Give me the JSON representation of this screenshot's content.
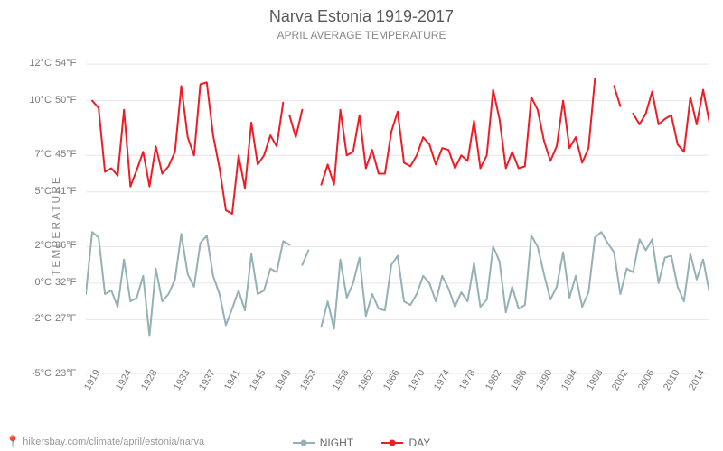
{
  "title": "Narva Estonia 1919-2017",
  "subtitle": "APRIL AVERAGE TEMPERATURE",
  "ylabel": "TEMPERATURE",
  "attribution": "hikersbay.com/climate/april/estonia/narva",
  "chart": {
    "type": "line",
    "background_color": "#ffffff",
    "grid_color": "#e6e6e6",
    "line_width": 2,
    "title_fontsize": 18,
    "subtitle_fontsize": 12,
    "label_fontsize": 12,
    "tick_fontsize": 11,
    "text_color": "#595959",
    "muted_text_color": "#888888",
    "xlim": [
      1919,
      2017
    ],
    "ylim": [
      -5,
      12.8
    ],
    "yticks_c": [
      -5,
      -2,
      0,
      2,
      5,
      7,
      10,
      12
    ],
    "yticks_c_labels": [
      "-5°C",
      "-2°C",
      "0°C",
      "2°C",
      "5°C",
      "7°C",
      "10°C",
      "12°C"
    ],
    "yticks_f_labels": [
      "23°F",
      "27°F",
      "32°F",
      "36°F",
      "41°F",
      "45°F",
      "50°F",
      "54°F"
    ],
    "xticks": [
      1919,
      1924,
      1928,
      1933,
      1937,
      1941,
      1945,
      1949,
      1953,
      1958,
      1962,
      1966,
      1970,
      1974,
      1978,
      1982,
      1986,
      1990,
      1994,
      1998,
      2002,
      2006,
      2010,
      2014
    ],
    "xtick_rotation": -60,
    "legend": {
      "night": "NIGHT",
      "day": "DAY"
    },
    "series": {
      "day": {
        "color": "#ee1c25",
        "marker": "circle",
        "segments": [
          {
            "years": [
              1920,
              1921,
              1922,
              1923,
              1924,
              1925,
              1926,
              1927,
              1928,
              1929,
              1930,
              1931,
              1932,
              1933,
              1934,
              1935,
              1936,
              1937,
              1938,
              1939,
              1940,
              1941,
              1942,
              1943,
              1944,
              1945,
              1946,
              1947,
              1948,
              1949,
              1950
            ],
            "values": [
              10.0,
              9.6,
              6.1,
              6.3,
              5.9,
              9.5,
              5.3,
              6.2,
              7.2,
              5.3,
              7.5,
              6.0,
              6.4,
              7.2,
              10.8,
              8.0,
              7.0,
              10.9,
              11.0,
              8.1,
              6.3,
              4.0,
              3.8,
              7.0,
              5.2,
              8.8,
              6.5,
              7.0,
              8.1,
              7.5,
              9.9
            ]
          },
          {
            "years": [
              1951,
              1952,
              1953
            ],
            "values": [
              9.2,
              8.0,
              9.5
            ]
          },
          {
            "years": [
              1956,
              1957,
              1958,
              1959,
              1960,
              1961,
              1962,
              1963,
              1964,
              1965,
              1966,
              1967,
              1968,
              1969,
              1970,
              1971,
              1972,
              1973,
              1974,
              1975,
              1976,
              1977,
              1978,
              1979,
              1980,
              1981,
              1982,
              1983,
              1984,
              1985,
              1986,
              1987,
              1988,
              1989,
              1990,
              1991,
              1992,
              1993,
              1994,
              1995,
              1996,
              1997,
              1998,
              1999
            ],
            "values": [
              5.4,
              6.5,
              5.4,
              9.5,
              7.0,
              7.2,
              9.2,
              6.3,
              7.3,
              6.0,
              6.0,
              8.3,
              9.4,
              6.6,
              6.4,
              7.0,
              8.0,
              7.6,
              6.5,
              7.4,
              7.3,
              6.3,
              7.0,
              6.7,
              8.9,
              6.3,
              7.0,
              10.6,
              9.0,
              6.3,
              7.2,
              6.3,
              6.4,
              10.2,
              9.5,
              7.8,
              6.7,
              7.5,
              10.0,
              7.4,
              8.0,
              6.6,
              7.4,
              11.2
            ]
          },
          {
            "years": [
              2002,
              2003
            ],
            "values": [
              10.8,
              9.7
            ]
          },
          {
            "years": [
              2005,
              2006,
              2007,
              2008,
              2009,
              2010,
              2011,
              2012,
              2013,
              2014,
              2015,
              2016,
              2017
            ],
            "values": [
              9.3,
              8.7,
              9.3,
              10.5,
              8.7,
              9.0,
              9.2,
              7.6,
              7.2,
              10.2,
              8.7,
              10.6,
              8.8
            ]
          }
        ]
      },
      "night": {
        "color": "#94b1b6",
        "marker": "circle",
        "segments": [
          {
            "years": [
              1919,
              1920,
              1921,
              1922,
              1923,
              1924,
              1925,
              1926,
              1927,
              1928,
              1929,
              1930,
              1931,
              1932,
              1933,
              1934,
              1935,
              1936,
              1937,
              1938,
              1939,
              1940,
              1941,
              1942,
              1943,
              1944,
              1945,
              1946,
              1947,
              1948,
              1949,
              1950,
              1951
            ],
            "values": [
              -0.6,
              2.8,
              2.5,
              -0.6,
              -0.4,
              -1.3,
              1.3,
              -1.0,
              -0.8,
              0.4,
              -2.9,
              0.8,
              -1.0,
              -0.6,
              0.2,
              2.7,
              0.5,
              -0.2,
              2.2,
              2.6,
              0.4,
              -0.6,
              -2.3,
              -1.4,
              -0.4,
              -1.5,
              1.6,
              -0.6,
              -0.4,
              0.8,
              0.6,
              2.3,
              2.1
            ]
          },
          {
            "years": [
              1953,
              1954
            ],
            "values": [
              1.0,
              1.8
            ]
          },
          {
            "years": [
              1956,
              1957,
              1958,
              1959,
              1960,
              1961,
              1962,
              1963,
              1964,
              1965,
              1966,
              1967,
              1968,
              1969,
              1970,
              1971,
              1972,
              1973,
              1974,
              1975,
              1976,
              1977,
              1978,
              1979,
              1980,
              1981,
              1982,
              1983,
              1984,
              1985,
              1986,
              1987,
              1988,
              1989,
              1990,
              1991,
              1992,
              1993,
              1994,
              1995,
              1996,
              1997,
              1998,
              1999,
              2000,
              2001,
              2002,
              2003,
              2004,
              2005,
              2006,
              2007,
              2008,
              2009,
              2010,
              2011,
              2012,
              2013,
              2014,
              2015,
              2016,
              2017
            ],
            "values": [
              -2.4,
              -1.0,
              -2.5,
              1.3,
              -0.8,
              0.0,
              1.4,
              -1.8,
              -0.6,
              -1.4,
              -1.5,
              1.0,
              1.5,
              -1.0,
              -1.2,
              -0.6,
              0.4,
              0.0,
              -1.0,
              0.4,
              -0.3,
              -1.3,
              -0.5,
              -1.0,
              1.1,
              -1.3,
              -0.9,
              2,
              1.2,
              -1.6,
              -0.2,
              -1.4,
              -1.2,
              2.6,
              2.0,
              0.5,
              -0.9,
              -0.2,
              1.7,
              -0.8,
              0.4,
              -1.3,
              -0.5,
              2.5,
              2.8,
              2.2,
              1.7,
              -0.6,
              0.8,
              0.6,
              2.4,
              1.8,
              2.4,
              0.0,
              1.4,
              1.5,
              -0.2,
              -1.0,
              1.6,
              0.2,
              1.3,
              -0.5
            ]
          }
        ]
      }
    }
  }
}
